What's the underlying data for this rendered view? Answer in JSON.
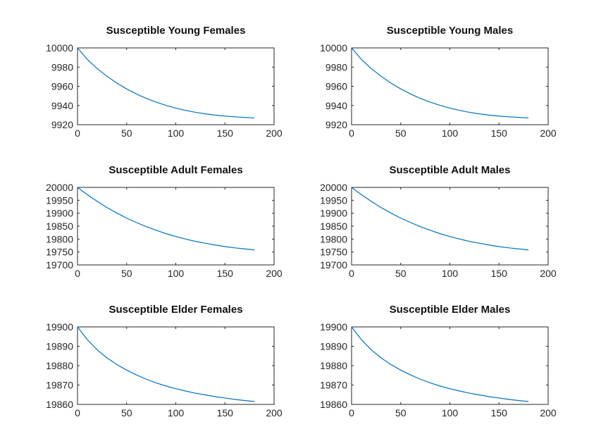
{
  "chart_data": [
    {
      "type": "line",
      "title": "Susceptible Young Females",
      "xlabel": "",
      "ylabel": "",
      "xlim": [
        0,
        200
      ],
      "ylim": [
        9920,
        10000
      ],
      "xticks": [
        "0",
        "50",
        "100",
        "150",
        "200"
      ],
      "yticks": [
        "10000",
        "9980",
        "9960",
        "9940",
        "9920"
      ],
      "series": [
        {
          "name": "S young females",
          "color": "#0072BD",
          "x": [
            0,
            10,
            20,
            30,
            40,
            50,
            60,
            70,
            80,
            90,
            100,
            110,
            120,
            130,
            140,
            150,
            160,
            170,
            180
          ],
          "y": [
            10000,
            9988,
            9978.5,
            9970.5,
            9963.4,
            9957.3,
            9952,
            9947.4,
            9943.5,
            9940.1,
            9937.3,
            9934.9,
            9932.9,
            9931.3,
            9930,
            9929,
            9928.2,
            9927.6,
            9927
          ]
        }
      ]
    },
    {
      "type": "line",
      "title": "Susceptible Young Males",
      "xlabel": "",
      "ylabel": "",
      "xlim": [
        0,
        200
      ],
      "ylim": [
        9920,
        10000
      ],
      "xticks": [
        "0",
        "50",
        "100",
        "150",
        "200"
      ],
      "yticks": [
        "10000",
        "9980",
        "9960",
        "9940",
        "9920"
      ],
      "series": [
        {
          "name": "S young males",
          "color": "#0072BD",
          "x": [
            0,
            10,
            20,
            30,
            40,
            50,
            60,
            70,
            80,
            90,
            100,
            110,
            120,
            130,
            140,
            150,
            160,
            170,
            180
          ],
          "y": [
            10000,
            9988,
            9978.5,
            9970.5,
            9963.4,
            9957.3,
            9952,
            9947.4,
            9943.5,
            9940.1,
            9937.3,
            9934.9,
            9932.9,
            9931.3,
            9930,
            9929,
            9928.2,
            9927.6,
            9927
          ]
        }
      ]
    },
    {
      "type": "line",
      "title": "Susceptible Adult Females",
      "xlabel": "",
      "ylabel": "",
      "xlim": [
        0,
        200
      ],
      "ylim": [
        19700,
        20000
      ],
      "xticks": [
        "0",
        "50",
        "100",
        "150",
        "200"
      ],
      "yticks": [
        "20000",
        "19950",
        "19900",
        "19850",
        "19800",
        "19750",
        "19700"
      ],
      "series": [
        {
          "name": "S adult females",
          "color": "#0072BD",
          "x": [
            0,
            10,
            20,
            30,
            40,
            50,
            60,
            70,
            80,
            90,
            100,
            110,
            120,
            130,
            140,
            150,
            160,
            170,
            180
          ],
          "y": [
            20000,
            19972,
            19946,
            19922,
            19901,
            19881,
            19864,
            19848,
            19834,
            19821,
            19810,
            19800,
            19791,
            19784,
            19777,
            19771,
            19766,
            19762,
            19758
          ]
        }
      ]
    },
    {
      "type": "line",
      "title": "Susceptible Adult Males",
      "xlabel": "",
      "ylabel": "",
      "xlim": [
        0,
        200
      ],
      "ylim": [
        19700,
        20000
      ],
      "xticks": [
        "0",
        "50",
        "100",
        "150",
        "200"
      ],
      "yticks": [
        "20000",
        "19950",
        "19900",
        "19850",
        "19800",
        "19750",
        "19700"
      ],
      "series": [
        {
          "name": "S adult males",
          "color": "#0072BD",
          "x": [
            0,
            10,
            20,
            30,
            40,
            50,
            60,
            70,
            80,
            90,
            100,
            110,
            120,
            130,
            140,
            150,
            160,
            170,
            180
          ],
          "y": [
            20000,
            19972,
            19946,
            19922,
            19901,
            19881,
            19864,
            19848,
            19834,
            19821,
            19810,
            19800,
            19791,
            19784,
            19777,
            19771,
            19766,
            19762,
            19758
          ]
        }
      ]
    },
    {
      "type": "line",
      "title": "Susceptible Elder Females",
      "xlabel": "",
      "ylabel": "",
      "xlim": [
        0,
        200
      ],
      "ylim": [
        19860,
        19900
      ],
      "xticks": [
        "0",
        "50",
        "100",
        "150",
        "200"
      ],
      "yticks": [
        "19900",
        "19890",
        "19880",
        "19870",
        "19860"
      ],
      "series": [
        {
          "name": "S elder females",
          "color": "#0072BD",
          "x": [
            0,
            10,
            20,
            30,
            40,
            50,
            60,
            70,
            80,
            90,
            100,
            110,
            120,
            130,
            140,
            150,
            160,
            170,
            180
          ],
          "y": [
            19900,
            19893.4,
            19888.2,
            19884,
            19880.6,
            19877.7,
            19875.2,
            19873,
            19871.1,
            19869.5,
            19868.1,
            19866.9,
            19865.8,
            19864.9,
            19864,
            19863.3,
            19862.6,
            19862,
            19861.5
          ]
        }
      ]
    },
    {
      "type": "line",
      "title": "Susceptible Elder Males",
      "xlabel": "",
      "ylabel": "",
      "xlim": [
        0,
        200
      ],
      "ylim": [
        19860,
        19900
      ],
      "xticks": [
        "0",
        "50",
        "100",
        "150",
        "200"
      ],
      "yticks": [
        "19900",
        "19890",
        "19880",
        "19870",
        "19860"
      ],
      "series": [
        {
          "name": "S elder males",
          "color": "#0072BD",
          "x": [
            0,
            10,
            20,
            30,
            40,
            50,
            60,
            70,
            80,
            90,
            100,
            110,
            120,
            130,
            140,
            150,
            160,
            170,
            180
          ],
          "y": [
            19900,
            19893.4,
            19888.2,
            19884,
            19880.6,
            19877.7,
            19875.2,
            19873,
            19871.1,
            19869.5,
            19868.1,
            19866.9,
            19865.8,
            19864.9,
            19864,
            19863.3,
            19862.6,
            19862,
            19861.5
          ]
        }
      ]
    }
  ]
}
